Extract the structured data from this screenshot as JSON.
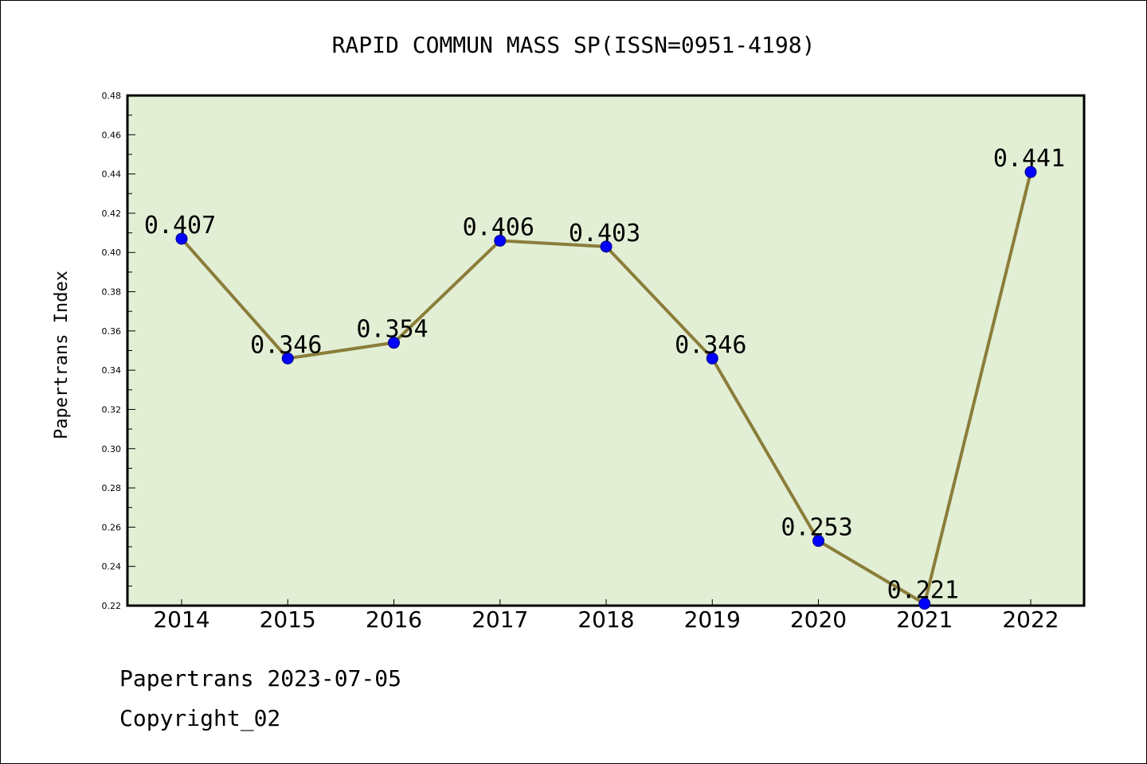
{
  "chart_data": {
    "type": "line",
    "title": "RAPID COMMUN MASS SP(ISSN=0951-4198)",
    "ylabel": "Papertrans Index",
    "xlabel": "",
    "categories": [
      "2014",
      "2015",
      "2016",
      "2017",
      "2018",
      "2019",
      "2020",
      "2021",
      "2022"
    ],
    "series": [
      {
        "values": [
          0.407,
          0.346,
          0.354,
          0.406,
          0.403,
          0.346,
          0.253,
          0.221,
          0.441
        ],
        "labels": [
          "0.407",
          "0.346",
          "0.354",
          "0.406",
          "0.403",
          "0.346",
          "0.253",
          "0.221",
          "0.441"
        ]
      }
    ],
    "ylim": [
      0.22,
      0.48
    ],
    "yticks": [
      "0.22",
      "0.24",
      "0.26",
      "0.28",
      "0.30",
      "0.32",
      "0.34",
      "0.36",
      "0.38",
      "0.40",
      "0.42",
      "0.44",
      "0.46",
      "0.48"
    ],
    "grid": false,
    "colors": {
      "plot_background": "#e2efd5",
      "line": "#8b7d3a",
      "marker": "#0000ff"
    }
  },
  "footer": {
    "date_text": "Papertrans 2023-07-05",
    "copyright_text": "Copyright_02"
  }
}
